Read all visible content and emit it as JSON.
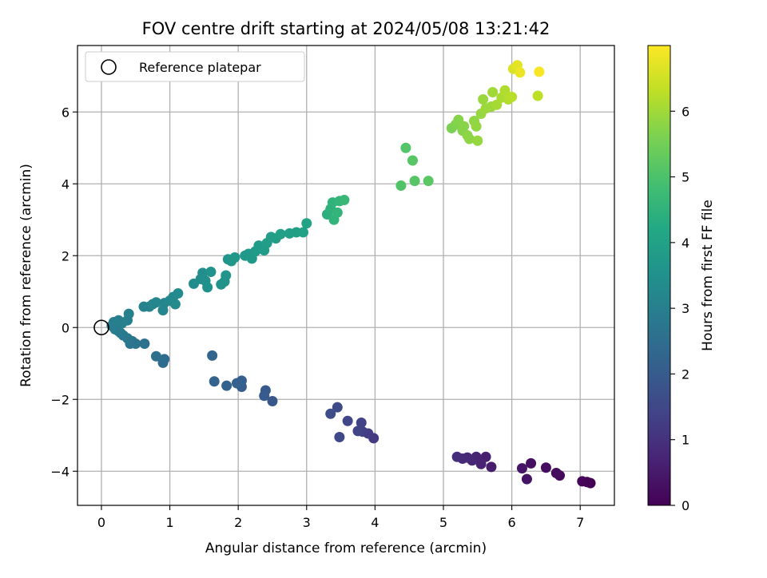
{
  "chart_data": {
    "type": "scatter",
    "title": "FOV centre drift starting at 2024/05/08 13:21:42",
    "xlabel": "Angular distance from reference (arcmin)",
    "ylabel": "Rotation from reference (arcmin)",
    "xlim": [
      -0.35,
      7.5
    ],
    "ylim": [
      -4.95,
      7.85
    ],
    "x_ticks": [
      0,
      1,
      2,
      3,
      4,
      5,
      6,
      7
    ],
    "y_ticks": [
      -4,
      -2,
      0,
      2,
      4,
      6
    ],
    "grid": true,
    "legend": {
      "position": "top-left",
      "entries": [
        "Reference platepar"
      ]
    },
    "reference_point": {
      "x": 0,
      "y": 0,
      "label": "Reference platepar"
    },
    "colorbar": {
      "label": "Hours from first FF file",
      "range": [
        0,
        7
      ],
      "ticks": [
        0,
        1,
        2,
        3,
        4,
        5,
        6
      ],
      "colormap": "viridis"
    },
    "series": [
      {
        "points_xyc": [
          [
            7.15,
            -4.33,
            0.0
          ],
          [
            7.1,
            -4.3,
            0.05
          ],
          [
            7.03,
            -4.28,
            0.1
          ],
          [
            6.7,
            -4.12,
            0.15
          ],
          [
            6.65,
            -4.05,
            0.2
          ],
          [
            6.5,
            -3.9,
            0.25
          ],
          [
            6.28,
            -3.78,
            0.3
          ],
          [
            6.22,
            -4.22,
            0.35
          ],
          [
            6.15,
            -3.92,
            0.4
          ],
          [
            5.7,
            -3.88,
            0.55
          ],
          [
            5.62,
            -3.6,
            0.6
          ],
          [
            5.55,
            -3.8,
            0.65
          ],
          [
            5.48,
            -3.6,
            0.7
          ],
          [
            5.42,
            -3.7,
            0.75
          ],
          [
            5.35,
            -3.62,
            0.8
          ],
          [
            5.28,
            -3.65,
            0.85
          ],
          [
            5.2,
            -3.6,
            0.9
          ],
          [
            3.98,
            -3.08,
            1.2
          ],
          [
            3.9,
            -2.95,
            1.25
          ],
          [
            3.82,
            -2.9,
            1.3
          ],
          [
            3.8,
            -2.65,
            1.35
          ],
          [
            3.75,
            -2.88,
            1.4
          ],
          [
            3.6,
            -2.6,
            1.45
          ],
          [
            3.48,
            -3.05,
            1.5
          ],
          [
            3.45,
            -2.22,
            1.55
          ],
          [
            3.35,
            -2.4,
            1.6
          ],
          [
            2.5,
            -2.05,
            1.9
          ],
          [
            2.4,
            -1.75,
            1.95
          ],
          [
            2.38,
            -1.9,
            2.0
          ],
          [
            2.05,
            -1.65,
            2.05
          ],
          [
            2.05,
            -1.48,
            2.1
          ],
          [
            1.98,
            -1.55,
            2.15
          ],
          [
            1.83,
            -1.62,
            2.2
          ],
          [
            1.65,
            -1.5,
            2.25
          ],
          [
            1.62,
            -0.78,
            2.3
          ],
          [
            0.92,
            -0.88,
            2.45
          ],
          [
            0.9,
            -0.98,
            2.5
          ],
          [
            0.8,
            -0.8,
            2.55
          ],
          [
            0.63,
            -0.45,
            2.6
          ],
          [
            0.5,
            -0.45,
            2.65
          ],
          [
            0.45,
            -0.38,
            2.7
          ],
          [
            0.42,
            -0.45,
            2.75
          ],
          [
            0.38,
            -0.3,
            2.8
          ],
          [
            0.32,
            -0.22,
            2.82
          ],
          [
            0.28,
            -0.15,
            2.85
          ],
          [
            0.25,
            -0.1,
            2.87
          ],
          [
            0.2,
            -0.05,
            2.9
          ],
          [
            0.15,
            0.05,
            2.92
          ],
          [
            0.18,
            0.15,
            2.95
          ],
          [
            0.25,
            0.2,
            2.97
          ],
          [
            0.3,
            0.12,
            3.0
          ],
          [
            0.38,
            0.2,
            3.02
          ],
          [
            0.4,
            0.38,
            3.05
          ],
          [
            0.7,
            0.58,
            3.1
          ],
          [
            0.62,
            0.58,
            3.12
          ],
          [
            0.75,
            0.65,
            3.15
          ],
          [
            0.8,
            0.7,
            3.18
          ],
          [
            0.9,
            0.48,
            3.2
          ],
          [
            0.92,
            0.68,
            3.22
          ],
          [
            1.0,
            0.75,
            3.25
          ],
          [
            1.05,
            0.85,
            3.27
          ],
          [
            1.08,
            0.65,
            3.3
          ],
          [
            1.12,
            0.95,
            3.32
          ],
          [
            1.35,
            1.22,
            3.4
          ],
          [
            1.45,
            1.35,
            3.42
          ],
          [
            1.48,
            1.52,
            3.45
          ],
          [
            1.52,
            1.3,
            3.47
          ],
          [
            1.55,
            1.12,
            3.5
          ],
          [
            1.6,
            1.55,
            3.52
          ],
          [
            1.75,
            1.2,
            3.55
          ],
          [
            1.8,
            1.28,
            3.57
          ],
          [
            1.82,
            1.45,
            3.6
          ],
          [
            1.85,
            1.9,
            3.62
          ],
          [
            1.9,
            1.85,
            3.65
          ],
          [
            1.95,
            1.95,
            3.67
          ],
          [
            2.1,
            2.0,
            3.7
          ],
          [
            2.15,
            2.05,
            3.72
          ],
          [
            2.2,
            1.92,
            3.75
          ],
          [
            2.25,
            2.12,
            3.77
          ],
          [
            2.3,
            2.28,
            3.8
          ],
          [
            2.38,
            2.15,
            3.82
          ],
          [
            2.42,
            2.35,
            3.85
          ],
          [
            2.48,
            2.52,
            3.87
          ],
          [
            2.55,
            2.48,
            3.9
          ],
          [
            2.62,
            2.6,
            3.92
          ],
          [
            2.75,
            2.62,
            3.95
          ],
          [
            2.85,
            2.65,
            3.97
          ],
          [
            2.95,
            2.65,
            4.0
          ],
          [
            3.0,
            2.9,
            4.05
          ],
          [
            3.3,
            3.15,
            4.4
          ],
          [
            3.35,
            3.3,
            4.45
          ],
          [
            3.38,
            3.48,
            4.5
          ],
          [
            3.4,
            3.0,
            4.52
          ],
          [
            3.45,
            3.2,
            4.55
          ],
          [
            3.48,
            3.52,
            4.6
          ],
          [
            3.55,
            3.55,
            4.65
          ],
          [
            4.38,
            3.95,
            5.05
          ],
          [
            4.45,
            5.0,
            5.1
          ],
          [
            4.55,
            4.65,
            5.12
          ],
          [
            4.58,
            4.08,
            5.15
          ],
          [
            4.78,
            4.08,
            5.18
          ],
          [
            5.12,
            5.55,
            5.6
          ],
          [
            5.18,
            5.65,
            5.65
          ],
          [
            5.22,
            5.78,
            5.7
          ],
          [
            5.28,
            5.48,
            5.72
          ],
          [
            5.3,
            5.6,
            5.75
          ],
          [
            5.35,
            5.35,
            5.78
          ],
          [
            5.38,
            5.25,
            5.8
          ],
          [
            5.45,
            5.75,
            5.83
          ],
          [
            5.48,
            5.6,
            5.85
          ],
          [
            5.5,
            5.2,
            5.88
          ],
          [
            5.55,
            5.95,
            5.9
          ],
          [
            5.58,
            6.35,
            5.92
          ],
          [
            5.62,
            6.1,
            5.95
          ],
          [
            5.7,
            6.15,
            5.97
          ],
          [
            5.72,
            6.55,
            6.0
          ],
          [
            5.78,
            6.2,
            6.05
          ],
          [
            5.85,
            6.4,
            6.1
          ],
          [
            5.9,
            6.6,
            6.15
          ],
          [
            5.95,
            6.35,
            6.2
          ],
          [
            6.0,
            6.42,
            6.25
          ],
          [
            6.38,
            6.45,
            6.3
          ],
          [
            6.02,
            7.2,
            6.6
          ],
          [
            6.08,
            7.3,
            6.7
          ],
          [
            6.12,
            7.1,
            6.8
          ],
          [
            6.4,
            7.12,
            6.95
          ]
        ]
      }
    ]
  }
}
